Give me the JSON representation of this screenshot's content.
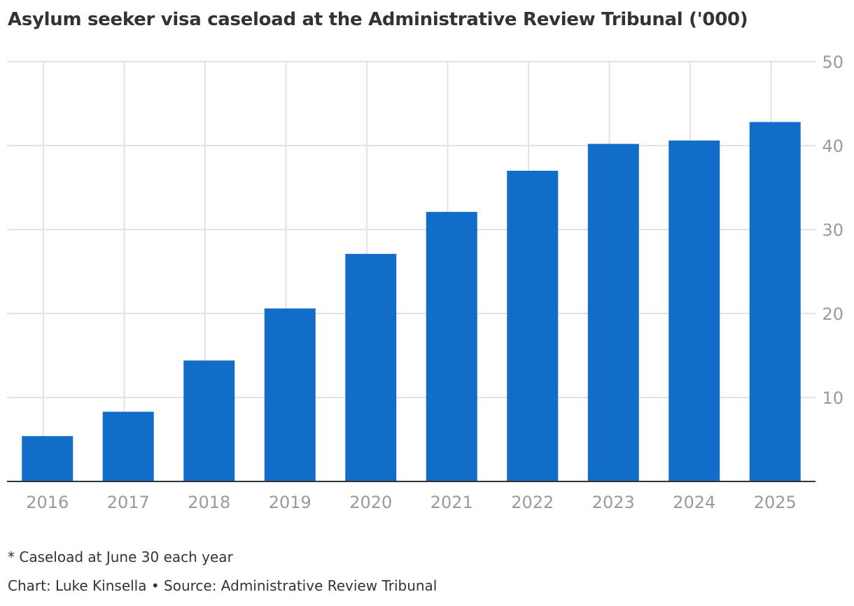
{
  "title": "Asylum seeker visa caseload at the Administrative Review Tribunal ('000)",
  "note": "* Caseload at June 30 each year",
  "credit": "Chart: Luke Kinsella • Source: Administrative Review Tribunal",
  "colors": {
    "bar": "#116dc7",
    "grid": "#e2e2e2",
    "baseline": "#333333",
    "tick_text": "#9a9a9a",
    "title_text": "#333333"
  },
  "chart_data": {
    "type": "bar",
    "title": "Asylum seeker visa caseload at the Administrative Review Tribunal ('000)",
    "categories": [
      "2016",
      "2017",
      "2018",
      "2019",
      "2020",
      "2021",
      "2022",
      "2023",
      "2024",
      "2025"
    ],
    "values": [
      5.4,
      8.3,
      14.4,
      20.6,
      27.1,
      32.1,
      37.0,
      40.2,
      40.6,
      42.8
    ],
    "xlabel": "",
    "ylabel": "",
    "ylim": [
      0,
      50
    ],
    "yticks": [
      "10",
      "20",
      "30",
      "40",
      "50"
    ],
    "y_axis_side": "right",
    "grid": true
  }
}
